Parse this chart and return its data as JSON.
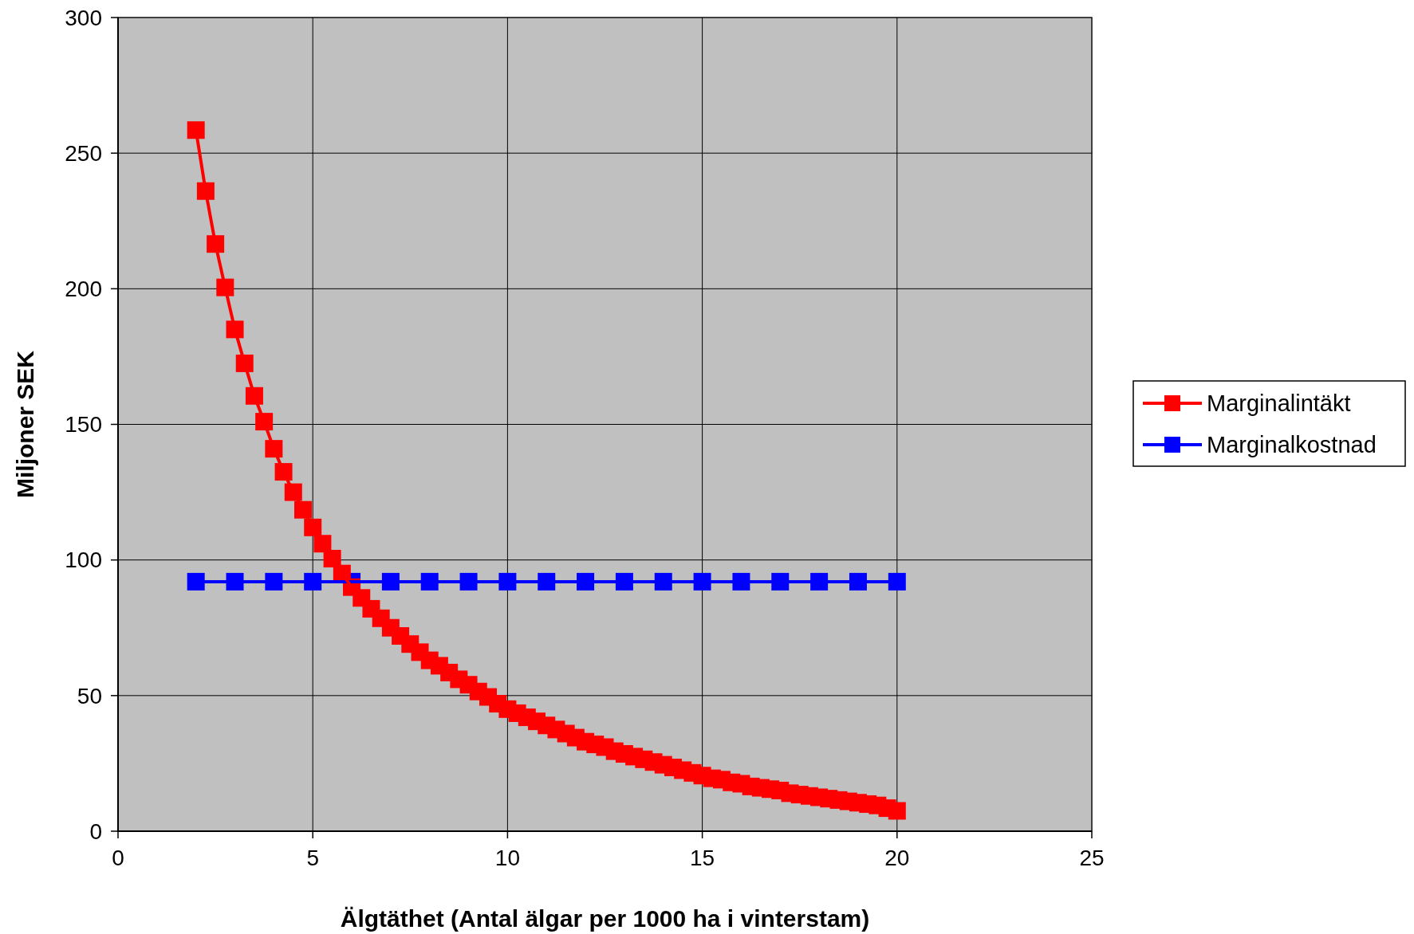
{
  "chart_data": {
    "type": "line",
    "xlabel": "Älgtäthet (Antal älgar per 1000 ha i vinterstam)",
    "ylabel": "Miljoner SEK",
    "x": [
      2,
      2.25,
      2.5,
      2.75,
      3,
      3.25,
      3.5,
      3.75,
      4,
      4.25,
      4.5,
      4.75,
      5,
      5.25,
      5.5,
      5.75,
      6,
      6.25,
      6.5,
      6.75,
      7,
      7.25,
      7.5,
      7.75,
      8,
      8.25,
      8.5,
      8.75,
      9,
      9.25,
      9.5,
      9.75,
      10,
      10.25,
      10.5,
      10.75,
      11,
      11.25,
      11.5,
      11.75,
      12,
      12.25,
      12.5,
      12.75,
      13,
      13.25,
      13.5,
      13.75,
      14,
      14.25,
      14.5,
      14.75,
      15,
      15.25,
      15.5,
      15.75,
      16,
      16.25,
      16.5,
      16.75,
      17,
      17.25,
      17.5,
      17.75,
      18,
      18.25,
      18.5,
      18.75,
      19,
      19.25,
      19.5,
      19.75,
      20
    ],
    "series": [
      {
        "name": "Marginalintäkt",
        "color": "#ff0000",
        "values": [
          258.5,
          236,
          216.5,
          200.5,
          185,
          172.5,
          160.5,
          151,
          141,
          132.5,
          125,
          118.5,
          112,
          106,
          100.5,
          95,
          90,
          86,
          82,
          78.5,
          75,
          72,
          69,
          66,
          63,
          61,
          58.5,
          56,
          54,
          51.5,
          49.5,
          47,
          45,
          43.5,
          42,
          40.5,
          39,
          37.5,
          36,
          34.5,
          33,
          32,
          31,
          29.5,
          28.5,
          27.5,
          26.5,
          25.5,
          24.5,
          23.5,
          22.5,
          21.5,
          20.5,
          19.5,
          19,
          18,
          17.5,
          16.5,
          16,
          15.5,
          15,
          14,
          13.5,
          13,
          12.5,
          12,
          11.5,
          11,
          10.5,
          10,
          9.5,
          8.5,
          7.5
        ]
      },
      {
        "name": "Marginalkostnad",
        "color": "#0000ff",
        "x": [
          2,
          3,
          4,
          5,
          6,
          7,
          8,
          9,
          10,
          11,
          12,
          13,
          14,
          15,
          16,
          17,
          18,
          19,
          20
        ],
        "values": [
          92,
          92,
          92,
          92,
          92,
          92,
          92,
          92,
          92,
          92,
          92,
          92,
          92,
          92,
          92,
          92,
          92,
          92,
          92
        ]
      }
    ],
    "xlim": [
      0,
      25
    ],
    "xticks": [
      0,
      5,
      10,
      15,
      20,
      25
    ],
    "ylim": [
      0,
      300
    ],
    "yticks": [
      0,
      50,
      100,
      150,
      200,
      250,
      300
    ],
    "grid": true,
    "legend": "right",
    "marker": "square",
    "line_style": "solid"
  }
}
